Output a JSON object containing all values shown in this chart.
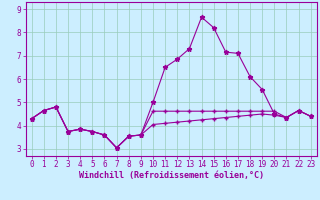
{
  "xlabel": "Windchill (Refroidissement éolien,°C)",
  "background_color": "#cceeff",
  "grid_color": "#99ccbb",
  "line_color": "#990099",
  "x_values": [
    0,
    1,
    2,
    3,
    4,
    5,
    6,
    7,
    8,
    9,
    10,
    11,
    12,
    13,
    14,
    15,
    16,
    17,
    18,
    19,
    20,
    21,
    22,
    23
  ],
  "series1": [
    4.3,
    4.65,
    4.8,
    3.75,
    3.85,
    3.75,
    3.6,
    3.05,
    3.55,
    3.6,
    5.0,
    6.5,
    6.85,
    7.3,
    8.65,
    8.2,
    7.15,
    7.1,
    6.1,
    5.55,
    4.5,
    4.35,
    4.65,
    4.4
  ],
  "series2": [
    4.3,
    4.65,
    4.8,
    3.75,
    3.85,
    3.75,
    3.6,
    3.05,
    3.55,
    3.6,
    4.62,
    4.62,
    4.62,
    4.62,
    4.62,
    4.62,
    4.62,
    4.62,
    4.62,
    4.62,
    4.62,
    4.35,
    4.65,
    4.4
  ],
  "series3": [
    4.3,
    4.65,
    4.8,
    3.75,
    3.85,
    3.75,
    3.6,
    3.05,
    3.55,
    3.6,
    4.05,
    4.1,
    4.15,
    4.2,
    4.25,
    4.3,
    4.35,
    4.4,
    4.45,
    4.5,
    4.45,
    4.35,
    4.65,
    4.4
  ],
  "ylim": [
    2.7,
    9.3
  ],
  "xlim": [
    -0.5,
    23.5
  ],
  "yticks": [
    3,
    4,
    5,
    6,
    7,
    8,
    9
  ],
  "xticks": [
    0,
    1,
    2,
    3,
    4,
    5,
    6,
    7,
    8,
    9,
    10,
    11,
    12,
    13,
    14,
    15,
    16,
    17,
    18,
    19,
    20,
    21,
    22,
    23
  ],
  "tick_fontsize": 5.5,
  "xlabel_fontsize": 6.0
}
